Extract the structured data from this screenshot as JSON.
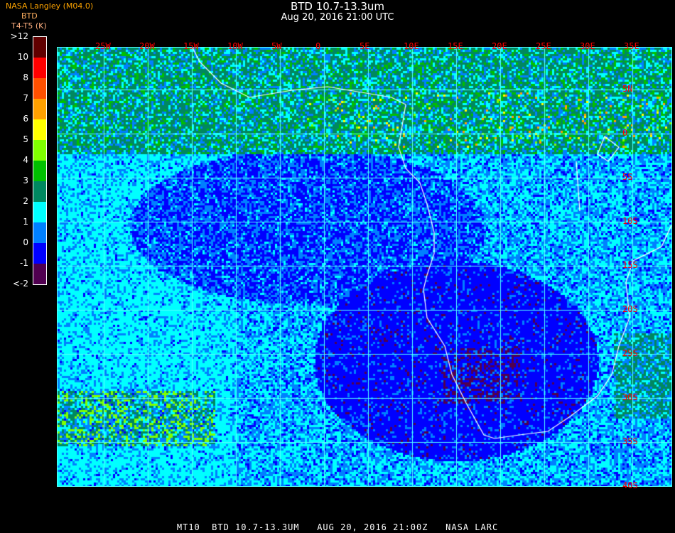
{
  "header": {
    "title": "BTD 10.7-13.3um",
    "subtitle": "Aug 20, 2016 21:00 UTC",
    "org": "NASA Langley (M04.0)",
    "product": "BTD",
    "units": "T4-T5 (K)"
  },
  "legend": {
    "labels": [
      ">12",
      "10",
      "8",
      "7",
      "6",
      "5",
      "4",
      "3",
      "2",
      "1",
      "0",
      "-1",
      "<-2"
    ],
    "colors": [
      "#600000",
      "#ff0000",
      "#ff5000",
      "#ffa000",
      "#ffff00",
      "#80ff00",
      "#00c000",
      "#008860",
      "#00ffff",
      "#0080ff",
      "#0000ff",
      "#500050"
    ]
  },
  "map": {
    "longitude_labels": [
      "25W",
      "20W",
      "15W",
      "10W",
      "5W",
      "0",
      "5E",
      "10E",
      "15E",
      "20E",
      "25E",
      "30E",
      "35E"
    ],
    "latitude_labels": [
      "5N",
      "0",
      "5S",
      "10S",
      "15S",
      "20S",
      "25S",
      "30S",
      "35S",
      "40S"
    ],
    "grid_color": "#55ffff",
    "coast_color": "#ffffff",
    "label_color": "#ff0000"
  },
  "footer": "MT10  BTD 10.7-13.3UM   AUG 20, 2016 21:00Z   NASA LARC"
}
